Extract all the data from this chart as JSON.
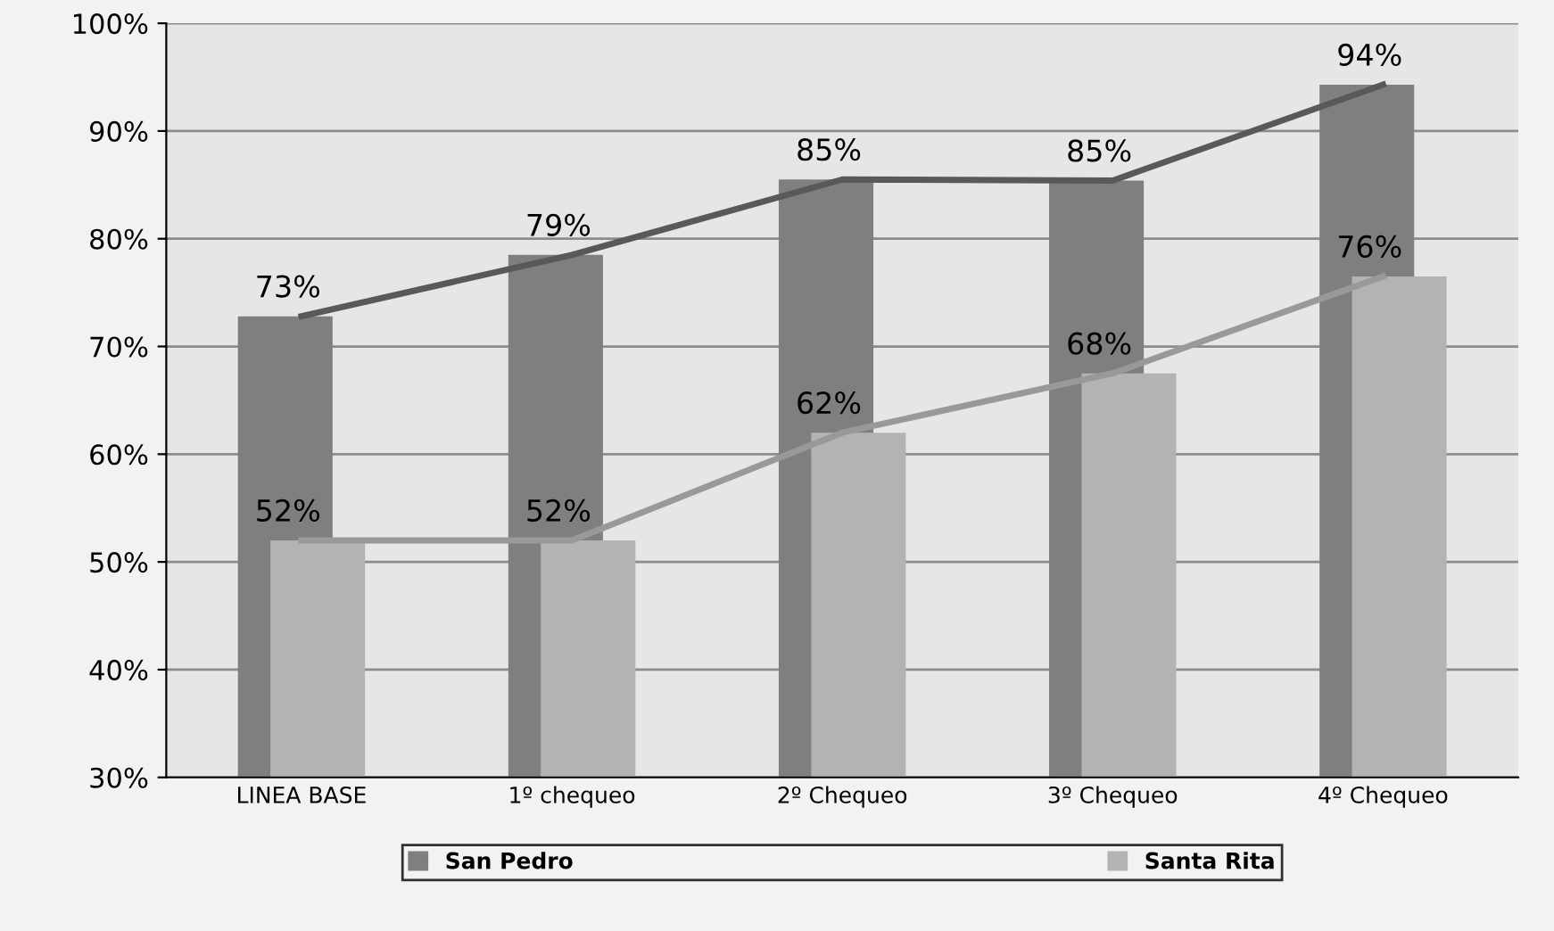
{
  "chart_data": {
    "type": "bar",
    "categories": [
      "LINEA BASE",
      "1º chequeo",
      "2º Chequeo",
      "3º Chequeo",
      "4º Chequeo"
    ],
    "series": [
      {
        "name": "San Pedro",
        "color": "#7f7f7f",
        "values": [
          72.8,
          78.5,
          85.5,
          85.4,
          94.3
        ],
        "value_labels": [
          "73%",
          "79%",
          "85%",
          "85%",
          "94%"
        ]
      },
      {
        "name": "Santa Rita",
        "color": "#b3b3b3",
        "values": [
          52,
          52,
          62,
          67.5,
          76.5
        ],
        "value_labels": [
          "52%",
          "52%",
          "62%",
          "68%",
          "76%"
        ]
      },
      {
        "type": "line",
        "color": "#595959",
        "values": [
          72.8,
          78.5,
          85.5,
          85.4,
          94.3
        ]
      },
      {
        "type": "line",
        "color": "#999999",
        "values": [
          52,
          52,
          62,
          67.5,
          76.5
        ]
      }
    ],
    "ylim": [
      30,
      100
    ],
    "yticks": [
      {
        "value": 30,
        "label": "30%"
      },
      {
        "value": 40,
        "label": "40%"
      },
      {
        "value": 50,
        "label": "50%"
      },
      {
        "value": 60,
        "label": "60%"
      },
      {
        "value": 70,
        "label": "70%"
      },
      {
        "value": 80,
        "label": "80%"
      },
      {
        "value": 90,
        "label": "90%"
      },
      {
        "value": 100,
        "label": "100%"
      }
    ],
    "grid": "y",
    "legend": "bottom",
    "line_style": "solid",
    "marker": "none"
  }
}
